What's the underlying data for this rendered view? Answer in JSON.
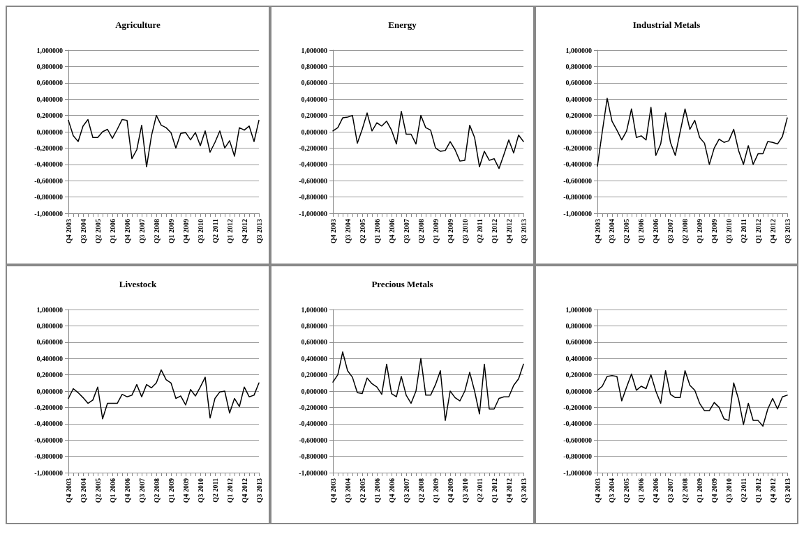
{
  "chart_data": [
    {
      "type": "line",
      "title": "Agriculture",
      "categories": [
        "Q4 2003",
        null,
        null,
        "Q3 2004",
        null,
        null,
        "Q2 2005",
        null,
        null,
        "Q1 2006",
        null,
        null,
        "Q4 2006",
        null,
        null,
        "Q3 2007",
        null,
        null,
        "Q2 2008",
        null,
        null,
        "Q1 2009",
        null,
        null,
        "Q4 2009",
        null,
        null,
        "Q3 2010",
        null,
        null,
        "Q2 2011",
        null,
        null,
        "Q1 2012",
        null,
        null,
        "Q4 2012",
        null,
        null,
        "Q3 2013"
      ],
      "series": [
        {
          "color": "#000000",
          "values": [
            0.14,
            -0.05,
            -0.12,
            0.07,
            0.15,
            -0.07,
            -0.07,
            0.0,
            0.03,
            -0.08,
            0.03,
            0.15,
            0.14,
            -0.33,
            -0.22,
            0.08,
            -0.43,
            -0.05,
            0.2,
            0.08,
            0.05,
            -0.01,
            -0.2,
            -0.02,
            -0.01,
            -0.1,
            -0.01,
            -0.17,
            0.01,
            -0.25,
            -0.13,
            0.01,
            -0.2,
            -0.11,
            -0.3,
            0.05,
            0.02,
            0.07,
            -0.12,
            0.14
          ]
        }
      ],
      "ylim": [
        -1,
        1
      ],
      "yticks": [
        {
          "value": -1,
          "label": "-1,000000"
        },
        {
          "value": -0.8,
          "label": "-0,800000"
        },
        {
          "value": -0.6,
          "label": "-0,600000"
        },
        {
          "value": -0.4,
          "label": "-0,400000"
        },
        {
          "value": -0.2,
          "label": "-0,200000"
        },
        {
          "value": 0,
          "label": "0,000000"
        },
        {
          "value": 0.2,
          "label": "0,200000"
        },
        {
          "value": 0.4,
          "label": "0,400000"
        },
        {
          "value": 0.6,
          "label": "0,600000"
        },
        {
          "value": 0.8,
          "label": "0,800000"
        },
        {
          "value": 1,
          "label": "1,000000"
        }
      ],
      "grid": "y",
      "marker": "none",
      "line_style": "solid"
    },
    {
      "type": "line",
      "title": "Energy",
      "categories": [
        "Q4 2003",
        null,
        null,
        "Q3 2004",
        null,
        null,
        "Q2 2005",
        null,
        null,
        "Q1 2006",
        null,
        null,
        "Q4 2006",
        null,
        null,
        "Q3 2007",
        null,
        null,
        "Q2 2008",
        null,
        null,
        "Q1 2009",
        null,
        null,
        "Q4 2009",
        null,
        null,
        "Q3 2010",
        null,
        null,
        "Q2 2011",
        null,
        null,
        "Q1 2012",
        null,
        null,
        "Q4 2012",
        null,
        null,
        "Q3 2013"
      ],
      "series": [
        {
          "color": "#000000",
          "values": [
            0.01,
            0.05,
            0.17,
            0.18,
            0.2,
            -0.14,
            0.03,
            0.23,
            0.01,
            0.11,
            0.07,
            0.13,
            0.02,
            -0.15,
            0.25,
            -0.03,
            -0.03,
            -0.15,
            0.2,
            0.05,
            0.02,
            -0.2,
            -0.24,
            -0.23,
            -0.12,
            -0.22,
            -0.36,
            -0.35,
            0.08,
            -0.07,
            -0.43,
            -0.24,
            -0.35,
            -0.33,
            -0.45,
            -0.28,
            -0.1,
            -0.26,
            -0.04,
            -0.12
          ]
        }
      ],
      "ylim": [
        -1,
        1
      ],
      "yticks": [
        {
          "value": -1,
          "label": "-1,000000"
        },
        {
          "value": -0.8,
          "label": "-0,800000"
        },
        {
          "value": -0.6,
          "label": "-0,600000"
        },
        {
          "value": -0.4,
          "label": "-0,400000"
        },
        {
          "value": -0.2,
          "label": "-0,200000"
        },
        {
          "value": 0,
          "label": "0,000000"
        },
        {
          "value": 0.2,
          "label": "0,200000"
        },
        {
          "value": 0.4,
          "label": "0,400000"
        },
        {
          "value": 0.6,
          "label": "0,600000"
        },
        {
          "value": 0.8,
          "label": "0,800000"
        },
        {
          "value": 1,
          "label": "1,000000"
        }
      ],
      "grid": "y",
      "marker": "none",
      "line_style": "solid"
    },
    {
      "type": "line",
      "title": "Industrial Metals",
      "categories": [
        "Q4 2003",
        null,
        null,
        "Q3 2004",
        null,
        null,
        "Q2 2005",
        null,
        null,
        "Q1 2006",
        null,
        null,
        "Q4 2006",
        null,
        null,
        "Q3 2007",
        null,
        null,
        "Q2 2008",
        null,
        null,
        "Q1 2009",
        null,
        null,
        "Q4 2009",
        null,
        null,
        "Q3 2010",
        null,
        null,
        "Q2 2011",
        null,
        null,
        "Q1 2012",
        null,
        null,
        "Q4 2012",
        null,
        null,
        "Q3 2013"
      ],
      "series": [
        {
          "color": "#000000",
          "values": [
            -0.42,
            0.0,
            0.41,
            0.13,
            0.02,
            -0.1,
            0.01,
            0.28,
            -0.07,
            -0.05,
            -0.1,
            0.3,
            -0.29,
            -0.15,
            0.23,
            -0.13,
            -0.29,
            0.0,
            0.28,
            0.03,
            0.14,
            -0.07,
            -0.14,
            -0.4,
            -0.2,
            -0.09,
            -0.13,
            -0.11,
            0.03,
            -0.23,
            -0.4,
            -0.17,
            -0.4,
            -0.27,
            -0.27,
            -0.12,
            -0.13,
            -0.15,
            -0.06,
            0.17
          ]
        }
      ],
      "ylim": [
        -1,
        1
      ],
      "yticks": [
        {
          "value": -1,
          "label": "-1,000000"
        },
        {
          "value": -0.8,
          "label": "-0,800000"
        },
        {
          "value": -0.6,
          "label": "-0,600000"
        },
        {
          "value": -0.4,
          "label": "-0,400000"
        },
        {
          "value": -0.2,
          "label": "-0,200000"
        },
        {
          "value": 0,
          "label": "0,000000"
        },
        {
          "value": 0.2,
          "label": "0,200000"
        },
        {
          "value": 0.4,
          "label": "0,400000"
        },
        {
          "value": 0.6,
          "label": "0,600000"
        },
        {
          "value": 0.8,
          "label": "0,800000"
        },
        {
          "value": 1,
          "label": "1,000000"
        }
      ],
      "grid": "y",
      "marker": "none",
      "line_style": "solid"
    },
    {
      "type": "line",
      "title": "Livestock",
      "categories": [
        "Q4 2003",
        null,
        null,
        "Q3 2004",
        null,
        null,
        "Q2 2005",
        null,
        null,
        "Q1 2006",
        null,
        null,
        "Q4 2006",
        null,
        null,
        "Q3 2007",
        null,
        null,
        "Q2 2008",
        null,
        null,
        "Q1 2009",
        null,
        null,
        "Q4 2009",
        null,
        null,
        "Q3 2010",
        null,
        null,
        "Q2 2011",
        null,
        null,
        "Q1 2012",
        null,
        null,
        "Q4 2012",
        null,
        null,
        "Q3 2013"
      ],
      "series": [
        {
          "color": "#000000",
          "values": [
            -0.09,
            0.03,
            -0.02,
            -0.08,
            -0.15,
            -0.11,
            0.05,
            -0.34,
            -0.15,
            -0.15,
            -0.15,
            -0.04,
            -0.07,
            -0.05,
            0.08,
            -0.07,
            0.08,
            0.04,
            0.1,
            0.26,
            0.14,
            0.1,
            -0.09,
            -0.06,
            -0.17,
            0.02,
            -0.06,
            0.05,
            0.17,
            -0.33,
            -0.09,
            -0.01,
            0.0,
            -0.27,
            -0.09,
            -0.19,
            0.05,
            -0.07,
            -0.05,
            0.1
          ]
        }
      ],
      "ylim": [
        -1,
        1
      ],
      "yticks": [
        {
          "value": -1,
          "label": "-1,000000"
        },
        {
          "value": -0.8,
          "label": "-0,800000"
        },
        {
          "value": -0.6,
          "label": "-0,600000"
        },
        {
          "value": -0.4,
          "label": "-0,400000"
        },
        {
          "value": -0.2,
          "label": "-0,200000"
        },
        {
          "value": 0,
          "label": "0,000000"
        },
        {
          "value": 0.2,
          "label": "0,200000"
        },
        {
          "value": 0.4,
          "label": "0,400000"
        },
        {
          "value": 0.6,
          "label": "0,600000"
        },
        {
          "value": 0.8,
          "label": "0,800000"
        },
        {
          "value": 1,
          "label": "1,000000"
        }
      ],
      "grid": "y",
      "marker": "none",
      "line_style": "solid"
    },
    {
      "type": "line",
      "title": "Precious Metals",
      "categories": [
        "Q4 2003",
        null,
        null,
        "Q3 2004",
        null,
        null,
        "Q2 2005",
        null,
        null,
        "Q1 2006",
        null,
        null,
        "Q4 2006",
        null,
        null,
        "Q3 2007",
        null,
        null,
        "Q2 2008",
        null,
        null,
        "Q1 2009",
        null,
        null,
        "Q4 2009",
        null,
        null,
        "Q3 2010",
        null,
        null,
        "Q2 2011",
        null,
        null,
        "Q1 2012",
        null,
        null,
        "Q4 2012",
        null,
        null,
        "Q3 2013"
      ],
      "series": [
        {
          "color": "#000000",
          "values": [
            0.11,
            0.2,
            0.48,
            0.25,
            0.17,
            -0.02,
            -0.03,
            0.16,
            0.09,
            0.05,
            -0.04,
            0.33,
            -0.03,
            -0.07,
            0.18,
            -0.05,
            -0.15,
            0.0,
            0.4,
            -0.05,
            -0.05,
            0.08,
            0.25,
            -0.36,
            0.0,
            -0.08,
            -0.12,
            0.0,
            0.23,
            0.0,
            -0.28,
            0.33,
            -0.22,
            -0.22,
            -0.09,
            -0.07,
            -0.07,
            0.07,
            0.15,
            0.33
          ]
        }
      ],
      "ylim": [
        -1,
        1
      ],
      "yticks": [
        {
          "value": -1,
          "label": "-1,000000"
        },
        {
          "value": -0.8,
          "label": "-0,800000"
        },
        {
          "value": -0.6,
          "label": "-0,600000"
        },
        {
          "value": -0.4,
          "label": "-0,400000"
        },
        {
          "value": -0.2,
          "label": "-0,200000"
        },
        {
          "value": 0,
          "label": "0,000000"
        },
        {
          "value": 0.2,
          "label": "0,200000"
        },
        {
          "value": 0.4,
          "label": "0,400000"
        },
        {
          "value": 0.6,
          "label": "0,600000"
        },
        {
          "value": 0.8,
          "label": "0,800000"
        },
        {
          "value": 1,
          "label": "1,000000"
        }
      ],
      "grid": "y",
      "marker": "none",
      "line_style": "solid"
    },
    {
      "type": "line",
      "categories": [
        "Q4 2003",
        null,
        null,
        "Q3 2004",
        null,
        null,
        "Q2 2005",
        null,
        null,
        "Q1 2006",
        null,
        null,
        "Q4 2006",
        null,
        null,
        "Q3 2007",
        null,
        null,
        "Q2 2008",
        null,
        null,
        "Q1 2009",
        null,
        null,
        "Q4 2009",
        null,
        null,
        "Q3 2010",
        null,
        null,
        "Q2 2011",
        null,
        null,
        "Q1 2012",
        null,
        null,
        "Q4 2012",
        null,
        null,
        "Q3 2013"
      ],
      "series": [
        {
          "color": "#000000",
          "values": [
            0.01,
            0.06,
            0.18,
            0.19,
            0.18,
            -0.12,
            0.05,
            0.21,
            0.01,
            0.06,
            0.03,
            0.2,
            0.0,
            -0.15,
            0.25,
            -0.04,
            -0.08,
            -0.08,
            0.25,
            0.07,
            0.01,
            -0.15,
            -0.24,
            -0.24,
            -0.14,
            -0.2,
            -0.34,
            -0.36,
            0.1,
            -0.1,
            -0.41,
            -0.15,
            -0.36,
            -0.36,
            -0.43,
            -0.22,
            -0.09,
            -0.22,
            -0.07,
            -0.05
          ]
        }
      ],
      "ylim": [
        -1,
        1
      ],
      "yticks": [
        {
          "value": -1,
          "label": "-1,000000"
        },
        {
          "value": -0.8,
          "label": "-0,800000"
        },
        {
          "value": -0.6,
          "label": "-0,600000"
        },
        {
          "value": -0.4,
          "label": "-0,400000"
        },
        {
          "value": -0.2,
          "label": "-0,200000"
        },
        {
          "value": 0,
          "label": "0,000000"
        },
        {
          "value": 0.2,
          "label": "0,200000"
        },
        {
          "value": 0.4,
          "label": "0,400000"
        },
        {
          "value": 0.6,
          "label": "0,600000"
        },
        {
          "value": 0.8,
          "label": "0,800000"
        },
        {
          "value": 1,
          "label": "1,000000"
        }
      ],
      "grid": "y",
      "marker": "none",
      "line_style": "solid"
    }
  ]
}
